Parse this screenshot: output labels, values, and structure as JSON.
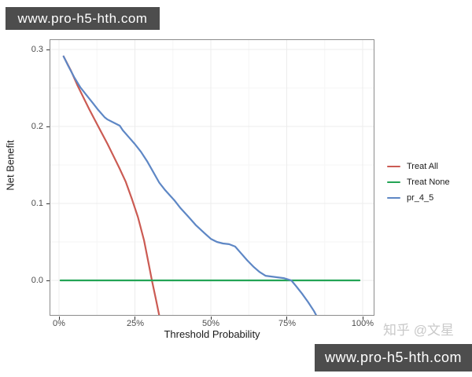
{
  "watermarks": {
    "top_bar": "www.pro-h5-hth.com",
    "bottom_bar": "www.pro-h5-hth.com",
    "credit": "知乎 @文星"
  },
  "chart_data": {
    "type": "line",
    "title": "",
    "xlabel": "Threshold Probability",
    "ylabel": "Net Benefit",
    "x_ticks": [
      "0%",
      "25%",
      "50%",
      "75%",
      "100%"
    ],
    "x_tick_values": [
      0,
      25,
      50,
      75,
      100
    ],
    "x_minor_values": [
      12.5,
      37.5,
      62.5,
      87.5
    ],
    "y_ticks": [
      "0.0",
      "0.1",
      "0.2",
      "0.3"
    ],
    "y_tick_values": [
      0,
      0.1,
      0.2,
      0.3
    ],
    "y_minor_values": [
      0.05,
      0.15,
      0.25
    ],
    "xlim": [
      -3,
      103
    ],
    "ylim": [
      -0.046,
      0.307
    ],
    "grid": true,
    "legend_position": "right",
    "panel_border_color": "#8c8c8c",
    "grid_major_color": "#ececec",
    "grid_minor_color": "#f6f6f6",
    "series": [
      {
        "name": "Treat All",
        "color": "#cb5b53",
        "points": [
          [
            1.5,
            0.291
          ],
          [
            4,
            0.272
          ],
          [
            6,
            0.254
          ],
          [
            8,
            0.238
          ],
          [
            10,
            0.222
          ],
          [
            12,
            0.207
          ],
          [
            14,
            0.192
          ],
          [
            16,
            0.177
          ],
          [
            18,
            0.161
          ],
          [
            20,
            0.145
          ],
          [
            22,
            0.128
          ],
          [
            24,
            0.106
          ],
          [
            26,
            0.082
          ],
          [
            28,
            0.052
          ],
          [
            29.5,
            0.022
          ],
          [
            30.6,
            0.0
          ],
          [
            32,
            -0.026
          ],
          [
            33.5,
            -0.055
          ]
        ]
      },
      {
        "name": "Treat None",
        "color": "#23a455",
        "points": [
          [
            0.5,
            0.0
          ],
          [
            99,
            0.0
          ]
        ]
      },
      {
        "name": "pr_4_5",
        "color": "#5e87c5",
        "points": [
          [
            1.5,
            0.291
          ],
          [
            3,
            0.279
          ],
          [
            5,
            0.264
          ],
          [
            7,
            0.251
          ],
          [
            9,
            0.241
          ],
          [
            11,
            0.231
          ],
          [
            13,
            0.221
          ],
          [
            15,
            0.212
          ],
          [
            16,
            0.209
          ],
          [
            18,
            0.205
          ],
          [
            20,
            0.201
          ],
          [
            21,
            0.195
          ],
          [
            23,
            0.186
          ],
          [
            25,
            0.177
          ],
          [
            27,
            0.167
          ],
          [
            29,
            0.155
          ],
          [
            31,
            0.141
          ],
          [
            33,
            0.127
          ],
          [
            35,
            0.117
          ],
          [
            38,
            0.104
          ],
          [
            40,
            0.094
          ],
          [
            43,
            0.081
          ],
          [
            45,
            0.072
          ],
          [
            48,
            0.061
          ],
          [
            50,
            0.054
          ],
          [
            52,
            0.05
          ],
          [
            54,
            0.048
          ],
          [
            56,
            0.047
          ],
          [
            58,
            0.044
          ],
          [
            60,
            0.035
          ],
          [
            62,
            0.026
          ],
          [
            64,
            0.018
          ],
          [
            66,
            0.011
          ],
          [
            68,
            0.006
          ],
          [
            70,
            0.005
          ],
          [
            72,
            0.004
          ],
          [
            74,
            0.003
          ],
          [
            76.5,
            0.0
          ],
          [
            78,
            -0.007
          ],
          [
            80,
            -0.017
          ],
          [
            82,
            -0.028
          ],
          [
            84,
            -0.04
          ],
          [
            86,
            -0.055
          ]
        ]
      }
    ]
  }
}
